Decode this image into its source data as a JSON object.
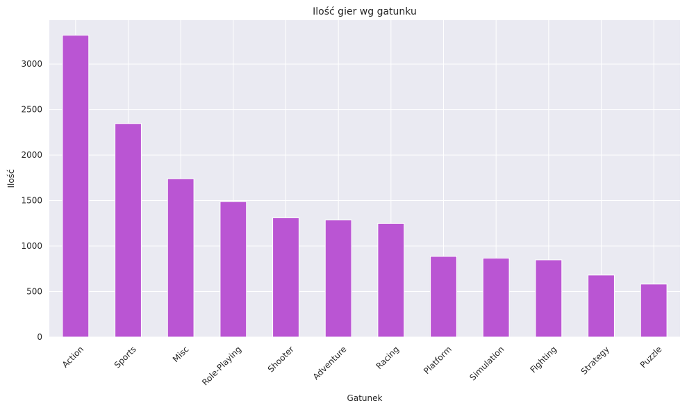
{
  "chart_data": {
    "type": "bar",
    "title": "Ilość gier wg gatunku",
    "xlabel": "Gatunek",
    "ylabel": "Ilość",
    "categories": [
      "Action",
      "Sports",
      "Misc",
      "Role-Playing",
      "Shooter",
      "Adventure",
      "Racing",
      "Platform",
      "Simulation",
      "Fighting",
      "Strategy",
      "Puzzle"
    ],
    "values": [
      3316,
      2346,
      1739,
      1488,
      1310,
      1286,
      1249,
      886,
      867,
      848,
      681,
      582
    ],
    "yticks": [
      0,
      500,
      1000,
      1500,
      2000,
      2500,
      3000
    ],
    "ylim": [
      0,
      3482
    ],
    "grid": true,
    "colors": {
      "bar": "#ba55d3",
      "plot_bg": "#eaeaf2",
      "grid": "#ffffff",
      "text": "#262626"
    }
  }
}
